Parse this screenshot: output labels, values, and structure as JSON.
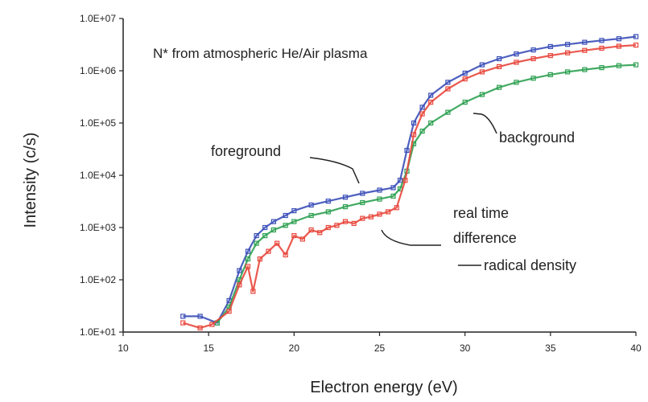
{
  "chart_data": {
    "type": "scatter",
    "title": "N* from atmospheric He/Air plasma",
    "xlabel": "Electron energy (eV)",
    "ylabel": "Intensity (c/s)",
    "xlim": [
      10,
      40
    ],
    "ylim": [
      10,
      10000000
    ],
    "yscale": "log",
    "x_ticks": [
      "10",
      "15",
      "20",
      "25",
      "30",
      "35",
      "40"
    ],
    "y_ticks": [
      "1.0E+01",
      "1.0E+02",
      "1.0E+03",
      "1.0E+04",
      "1.0E+05",
      "1.0E+06",
      "1.0E+07"
    ],
    "grid": false,
    "annotations": {
      "foreground": "foreground",
      "background": "background",
      "real_time": "real time",
      "difference": "difference",
      "radical_density": "radical density"
    },
    "series": [
      {
        "name": "foreground",
        "color": "#3b4fb8",
        "x": [
          13.5,
          14.5,
          15.5,
          16.2,
          16.8,
          17.3,
          17.8,
          18.3,
          18.8,
          19.5,
          20,
          21,
          22,
          23,
          24,
          25,
          25.8,
          26.2,
          26.6,
          27,
          27.5,
          28,
          29,
          30,
          31,
          32,
          33,
          34,
          35,
          36,
          37,
          38,
          39,
          40
        ],
        "y": [
          20,
          20,
          15,
          40,
          150,
          350,
          700,
          1000,
          1300,
          1700,
          2100,
          2700,
          3200,
          3800,
          4500,
          5200,
          5800,
          8000,
          30000,
          100000,
          200000,
          340000,
          600000,
          900000,
          1300000,
          1700000,
          2100000,
          2500000,
          2900000,
          3200000,
          3500000,
          3800000,
          4100000,
          4500000
        ]
      },
      {
        "name": "background",
        "color": "#2ea152",
        "x": [
          15.5,
          16.2,
          16.8,
          17.3,
          17.8,
          18.3,
          18.8,
          19.5,
          20,
          21,
          22,
          23,
          24,
          25,
          25.8,
          26.2,
          26.6,
          27,
          27.5,
          28,
          29,
          30,
          31,
          32,
          33,
          34,
          35,
          36,
          37,
          38,
          39,
          40
        ],
        "y": [
          15,
          30,
          100,
          250,
          500,
          700,
          900,
          1100,
          1300,
          1700,
          2000,
          2500,
          3000,
          3500,
          4000,
          5500,
          12000,
          40000,
          70000,
          100000,
          160000,
          250000,
          350000,
          480000,
          600000,
          720000,
          840000,
          950000,
          1050000,
          1150000,
          1250000,
          1300000
        ]
      },
      {
        "name": "real time difference",
        "color": "#e8473c",
        "x": [
          13.5,
          14.5,
          15.2,
          16.2,
          16.8,
          17.3,
          17.6,
          18,
          18.5,
          19,
          19.5,
          20,
          20.5,
          21,
          21.5,
          22,
          22.5,
          23,
          23.5,
          24,
          24.5,
          25,
          25.5,
          26,
          26.5,
          27,
          27.5,
          28,
          29,
          30,
          31,
          32,
          33,
          34,
          35,
          36,
          37,
          38,
          39,
          40
        ],
        "y": [
          15,
          12,
          14,
          25,
          80,
          180,
          60,
          250,
          350,
          500,
          300,
          700,
          600,
          900,
          800,
          1000,
          1100,
          1300,
          1200,
          1500,
          1600,
          1800,
          2000,
          2400,
          8000,
          60000,
          150000,
          250000,
          450000,
          700000,
          950000,
          1200000,
          1450000,
          1700000,
          1950000,
          2200000,
          2450000,
          2700000,
          2950000,
          3100000
        ]
      }
    ]
  }
}
